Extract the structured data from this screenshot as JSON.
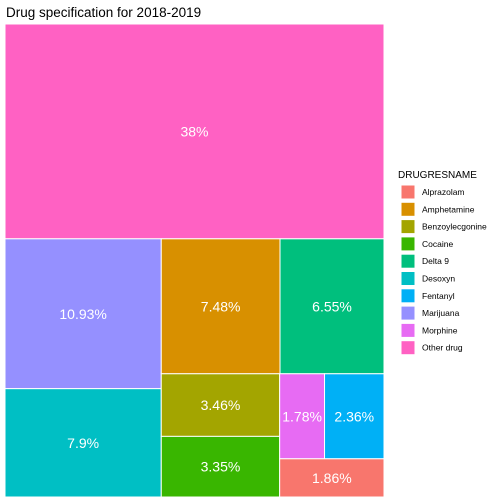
{
  "chart_data": {
    "type": "treemap",
    "title": "Drug specification for 2018-2019",
    "legend_title": "DRUGRESNAME",
    "legend_position": "right",
    "tiles": [
      {
        "name": "Other drug",
        "percent": 38,
        "label": "38%",
        "color": "#FF61C3"
      },
      {
        "name": "Marijuana",
        "percent": 10.93,
        "label": "10.93%",
        "color": "#9590FF"
      },
      {
        "name": "Desoxyn",
        "percent": 7.9,
        "label": "7.9%",
        "color": "#00BFC4"
      },
      {
        "name": "Amphetamine",
        "percent": 7.48,
        "label": "7.48%",
        "color": "#D89000"
      },
      {
        "name": "Delta 9",
        "percent": 6.55,
        "label": "6.55%",
        "color": "#00BF7D"
      },
      {
        "name": "Benzoylecgonine",
        "percent": 3.46,
        "label": "3.46%",
        "color": "#A3A500"
      },
      {
        "name": "Cocaine",
        "percent": 3.35,
        "label": "3.35%",
        "color": "#39B600"
      },
      {
        "name": "Morphine",
        "percent": 1.78,
        "label": "1.78%",
        "color": "#E76BF3"
      },
      {
        "name": "Fentanyl",
        "percent": 2.36,
        "label": "2.36%",
        "color": "#00B0F6"
      },
      {
        "name": "Alprazolam",
        "percent": 1.86,
        "label": "1.86%",
        "color": "#F8766D"
      }
    ],
    "legend": [
      {
        "name": "Alprazolam",
        "color": "#F8766D"
      },
      {
        "name": "Amphetamine",
        "color": "#D89000"
      },
      {
        "name": "Benzoylecgonine",
        "color": "#A3A500"
      },
      {
        "name": "Cocaine",
        "color": "#39B600"
      },
      {
        "name": "Delta 9",
        "color": "#00BF7D"
      },
      {
        "name": "Desoxyn",
        "color": "#00BFC4"
      },
      {
        "name": "Fentanyl",
        "color": "#00B0F6"
      },
      {
        "name": "Marijuana",
        "color": "#9590FF"
      },
      {
        "name": "Morphine",
        "color": "#E76BF3"
      },
      {
        "name": "Other drug",
        "color": "#FF61C3"
      }
    ]
  }
}
